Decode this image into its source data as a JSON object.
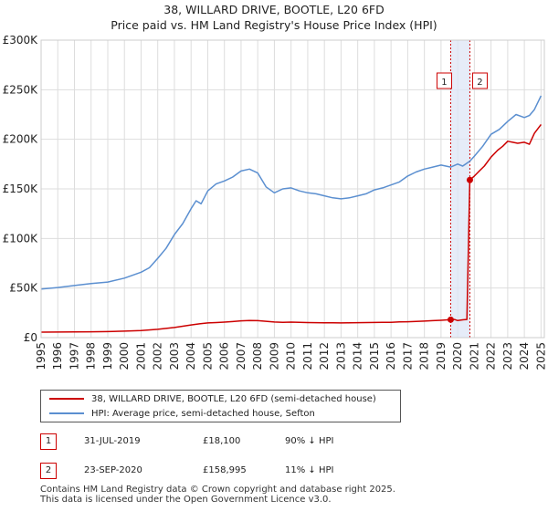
{
  "header": {
    "title": "38, WILLARD DRIVE, BOOTLE, L20 6FD",
    "subtitle": "Price paid vs. HM Land Registry's House Price Index (HPI)"
  },
  "chart_data": {
    "type": "line",
    "title": "38, WILLARD DRIVE, BOOTLE, L20 6FD",
    "subtitle": "Price paid vs. HM Land Registry's House Price Index (HPI)",
    "xlabel": "",
    "ylabel": "",
    "xlim": [
      1995,
      2025.2
    ],
    "ylim": [
      0,
      300000
    ],
    "y_ticks": [
      0,
      50000,
      100000,
      150000,
      200000,
      250000,
      300000
    ],
    "y_tick_labels": [
      "£0",
      "£50K",
      "£100K",
      "£150K",
      "£200K",
      "£250K",
      "£300K"
    ],
    "x_ticks": [
      1995,
      1996,
      1997,
      1998,
      1999,
      2000,
      2001,
      2002,
      2003,
      2004,
      2005,
      2006,
      2007,
      2008,
      2009,
      2010,
      2011,
      2012,
      2013,
      2014,
      2015,
      2016,
      2017,
      2018,
      2019,
      2020,
      2021,
      2022,
      2023,
      2024,
      2025
    ],
    "x_tick_labels": [
      "1995",
      "1996",
      "1997",
      "1998",
      "1999",
      "2000",
      "2001",
      "2002",
      "2003",
      "2004",
      "2005",
      "2006",
      "2007",
      "2008",
      "2009",
      "2010",
      "2011",
      "2012",
      "2013",
      "2014",
      "2015",
      "2016",
      "2017",
      "2018",
      "2019",
      "2020",
      "2021",
      "2022",
      "2023",
      "2024",
      "2025"
    ],
    "grid": true,
    "series": [
      {
        "name": "38, WILLARD DRIVE, BOOTLE, L20 6FD (semi-detached house)",
        "color": "#cc0000",
        "x": [
          1995.0,
          1996.0,
          1997.0,
          1998.0,
          1999.0,
          2000.0,
          2001.0,
          2002.0,
          2002.5,
          2003.0,
          2003.5,
          2004.0,
          2004.5,
          2005.0,
          2005.5,
          2006.0,
          2006.5,
          2007.0,
          2007.5,
          2008.0,
          2008.5,
          2009.0,
          2009.5,
          2010.0,
          2010.5,
          2011.0,
          2011.5,
          2012.0,
          2012.5,
          2013.0,
          2013.5,
          2014.0,
          2014.5,
          2015.0,
          2015.5,
          2016.0,
          2016.5,
          2017.0,
          2017.5,
          2018.0,
          2018.5,
          2019.0,
          2019.58,
          2019.8,
          2020.0,
          2020.3,
          2020.55,
          2020.73,
          2021.0,
          2021.3,
          2021.6,
          2022.0,
          2022.4,
          2022.7,
          2023.0,
          2023.3,
          2023.6,
          2024.0,
          2024.3,
          2024.6,
          2025.0
        ],
        "y": [
          5500,
          5600,
          5700,
          5900,
          6100,
          6500,
          7200,
          8400,
          9300,
          10200,
          11500,
          12800,
          13900,
          14800,
          15200,
          15600,
          16200,
          16900,
          17200,
          17100,
          16500,
          15700,
          15400,
          15600,
          15400,
          15200,
          15100,
          15000,
          14900,
          14800,
          14900,
          15100,
          15200,
          15300,
          15400,
          15500,
          15800,
          16000,
          16400,
          16700,
          17100,
          17500,
          18100,
          18300,
          17200,
          17900,
          18300,
          158995,
          163000,
          168000,
          173000,
          182000,
          189000,
          193000,
          198000,
          197000,
          196000,
          197000,
          195000,
          206000,
          215000
        ]
      },
      {
        "name": "HPI: Average price, semi-detached house, Sefton",
        "color": "#5b8fd0",
        "x": [
          1995.0,
          1996.0,
          1997.0,
          1998.0,
          1999.0,
          2000.0,
          2001.0,
          2001.5,
          2002.0,
          2002.5,
          2003.0,
          2003.5,
          2004.0,
          2004.3,
          2004.6,
          2005.0,
          2005.5,
          2006.0,
          2006.5,
          2007.0,
          2007.5,
          2008.0,
          2008.5,
          2009.0,
          2009.5,
          2010.0,
          2010.5,
          2011.0,
          2011.5,
          2012.0,
          2012.5,
          2013.0,
          2013.5,
          2014.0,
          2014.5,
          2015.0,
          2015.5,
          2016.0,
          2016.5,
          2017.0,
          2017.5,
          2018.0,
          2018.5,
          2019.0,
          2019.58,
          2020.0,
          2020.3,
          2020.73,
          2021.0,
          2021.5,
          2022.0,
          2022.5,
          2023.0,
          2023.5,
          2024.0,
          2024.3,
          2024.6,
          2025.0
        ],
        "y": [
          49000,
          50500,
          52500,
          54500,
          56000,
          60000,
          66000,
          70500,
          80000,
          90000,
          104000,
          115000,
          130000,
          138000,
          135000,
          148000,
          155000,
          158000,
          162000,
          168000,
          170000,
          166000,
          152000,
          146000,
          150000,
          151000,
          148000,
          146000,
          145000,
          143000,
          141000,
          140000,
          141000,
          143000,
          145000,
          149000,
          151000,
          154000,
          157000,
          163000,
          167000,
          170000,
          172000,
          174000,
          172000,
          175000,
          173000,
          178000,
          183000,
          193000,
          205000,
          210000,
          218000,
          225000,
          222000,
          224000,
          230000,
          244000
        ]
      }
    ],
    "annotations": [
      {
        "label": "1",
        "x": 2019.58,
        "y": 18100,
        "color": "#cc0000"
      },
      {
        "label": "2",
        "x": 2020.73,
        "y": 158995,
        "color": "#cc0000"
      }
    ],
    "shaded_region": {
      "x0": 2019.58,
      "x1": 2020.73,
      "color": "#dde6f5"
    }
  },
  "legend": {
    "items": [
      {
        "label": "38, WILLARD DRIVE, BOOTLE, L20 6FD (semi-detached house)",
        "color": "#cc0000"
      },
      {
        "label": "HPI: Average price, semi-detached house, Sefton",
        "color": "#5b8fd0"
      }
    ]
  },
  "transactions": [
    {
      "num": "1",
      "date": "31-JUL-2019",
      "price": "£18,100",
      "hpi": "90% ↓ HPI"
    },
    {
      "num": "2",
      "date": "23-SEP-2020",
      "price": "£158,995",
      "hpi": "11% ↓ HPI"
    }
  ],
  "footer": {
    "line1": "Contains HM Land Registry data © Crown copyright and database right 2025.",
    "line2": "This data is licensed under the Open Government Licence v3.0."
  }
}
